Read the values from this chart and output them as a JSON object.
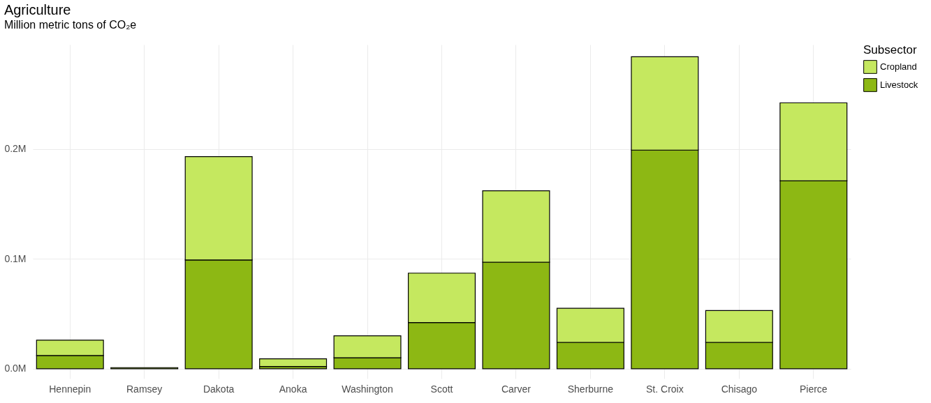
{
  "chart_data": {
    "type": "bar",
    "title": "Agriculture",
    "subtitle": "Million metric tons of CO₂e",
    "categories": [
      "Hennepin",
      "Ramsey",
      "Dakota",
      "Anoka",
      "Washington",
      "Scott",
      "Carver",
      "Sherburne",
      "St. Croix",
      "Chisago",
      "Pierce"
    ],
    "stacked": true,
    "series": [
      {
        "name": "Livestock",
        "color": "#8db814",
        "values": [
          0.012,
          0.001,
          0.099,
          0.002,
          0.01,
          0.042,
          0.097,
          0.024,
          0.199,
          0.024,
          0.171
        ]
      },
      {
        "name": "Cropland",
        "color": "#c5e85f",
        "values": [
          0.014,
          null,
          0.094,
          0.007,
          0.02,
          0.045,
          0.065,
          0.031,
          0.085,
          0.029,
          0.071
        ]
      }
    ],
    "legend_title": "Subsector",
    "legend": "right",
    "ylim": [
      -0.009,
      0.295
    ],
    "yticks": [
      {
        "value": 0,
        "label": "0.0M"
      },
      {
        "value": 0.1,
        "label": "0.1M"
      },
      {
        "value": 0.2,
        "label": "0.2M"
      }
    ],
    "grid": true
  }
}
